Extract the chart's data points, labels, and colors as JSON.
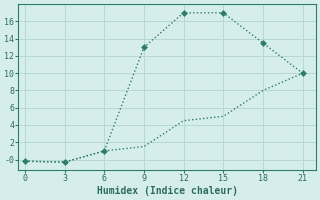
{
  "line1_x": [
    0,
    3,
    6,
    9,
    12,
    15,
    18,
    21
  ],
  "line1_y": [
    -0.2,
    -0.3,
    1.0,
    13.0,
    17.0,
    17.0,
    13.5,
    10.0
  ],
  "line2_x": [
    0,
    3,
    6,
    9,
    12,
    15,
    18,
    21
  ],
  "line2_y": [
    -0.2,
    -0.3,
    1.0,
    1.5,
    4.5,
    5.0,
    8.0,
    10.0
  ],
  "line_color": "#2d7b6e",
  "bg_color": "#d6eeeb",
  "grid_color": "#b8d8d4",
  "xlabel": "Humidex (Indice chaleur)",
  "xlim": [
    -0.5,
    22
  ],
  "ylim": [
    -1.2,
    18
  ],
  "xticks": [
    0,
    3,
    6,
    9,
    12,
    15,
    18,
    21
  ],
  "yticks": [
    0,
    2,
    4,
    6,
    8,
    10,
    12,
    14,
    16
  ],
  "ytick_labels": [
    "-0",
    "2",
    "4",
    "6",
    "8",
    "10",
    "12",
    "14",
    "16"
  ],
  "marker": "D",
  "marker_size": 3,
  "linewidth": 1.0,
  "fontsize_ticks": 6,
  "fontsize_xlabel": 7
}
